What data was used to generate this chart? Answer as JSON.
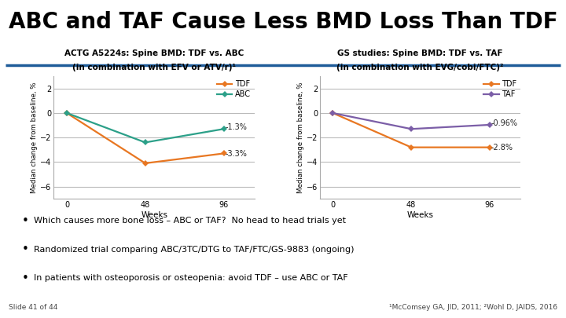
{
  "title": "ABC and TAF Cause Less BMD Loss Than TDF",
  "title_fontsize": 20,
  "title_fontweight": "bold",
  "title_color": "#000000",
  "header_line_color": "#1F5C99",
  "bg_color": "#FFFFFF",
  "plot1_title_line1": "ACTG A5224s: Spine BMD: TDF vs. ABC",
  "plot1_title_line2": "(in combination with EFV or ATV/r)¹",
  "plot2_title_line1": "GS studies: Spine BMD: TDF vs. TAF",
  "plot2_title_line2": "(in combination with EVG/cobi/FTC)²",
  "weeks": [
    0,
    48,
    96
  ],
  "plot1_TDF": [
    0,
    -4.1,
    -3.3
  ],
  "plot1_ABC": [
    0,
    -2.4,
    -1.3
  ],
  "plot2_TDF": [
    0,
    -2.8,
    -2.8
  ],
  "plot2_TAF": [
    0,
    -1.3,
    -0.96
  ],
  "plot1_TDF_label": "-3.3%",
  "plot1_ABC_label": "-1.3%",
  "plot2_TDF_label": "-2.8%",
  "plot2_TAF_label": "-0.96%",
  "ylim": [
    -7,
    3
  ],
  "yticks": [
    2,
    0,
    -2,
    -4,
    -6
  ],
  "xticks": [
    0,
    48,
    96
  ],
  "xlabel": "Weeks",
  "ylabel": "Median change from baseline, %",
  "color_TDF": "#E87722",
  "color_ABC": "#2CA089",
  "color_TAF": "#7B5EA7",
  "bullet_texts": [
    "Which causes more bone loss – ABC or TAF?  No head to head trials yet",
    "Randomized trial comparing ABC/3TC/DTG to TAF/FTC/GS-9883 (ongoing)",
    "In patients with osteoporosis or osteopenia: avoid TDF – use ABC or TAF"
  ],
  "footer_left": "Slide 41 of 44",
  "footer_right": "¹McComsey GA, JID, 2011; ²Wohl D, JAIDS, 2016"
}
